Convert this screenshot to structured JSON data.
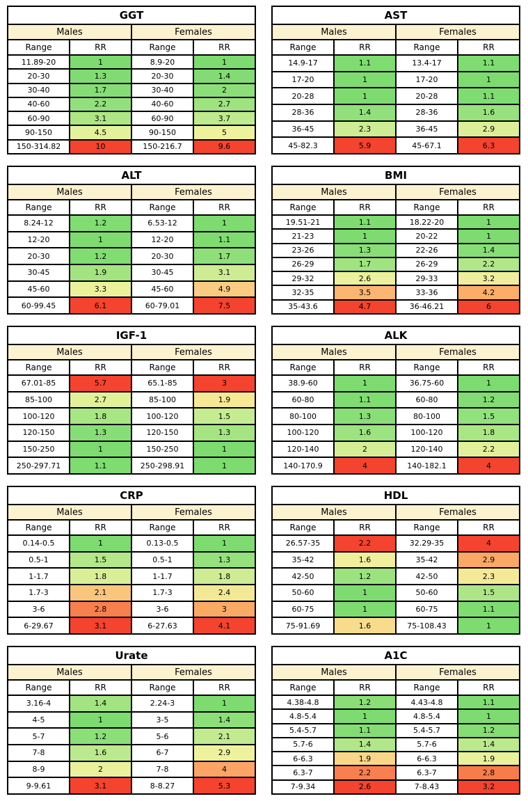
{
  "colors": {
    "background": "#ffffff",
    "border": "#000000",
    "text": "#000000",
    "gender_header_fill": "#fdf2d0",
    "scale_green_low": "#7ddb70",
    "scale_yellow_mid": "#f1ee9e",
    "scale_red_high": "#f4432e"
  },
  "labels": {
    "males": "Males",
    "females": "Females",
    "range": "Range",
    "rr": "RR"
  },
  "chart_data": {
    "type": "table",
    "layout": "2 columns x 5 rows of biomarker relative-risk tables, RR cells colored green(low) to red(high) per column",
    "tables": [
      {
        "title": "GGT",
        "males": [
          {
            "range": "11.89-20",
            "rr": "1",
            "color": "#7ddb70"
          },
          {
            "range": "20-30",
            "rr": "1.3",
            "color": "#80dc72"
          },
          {
            "range": "30-40",
            "rr": "1.7",
            "color": "#86dd75"
          },
          {
            "range": "40-60",
            "rr": "2.2",
            "color": "#92e07c"
          },
          {
            "range": "60-90",
            "rr": "3.1",
            "color": "#aee686"
          },
          {
            "range": "90-150",
            "rr": "4.5",
            "color": "#e4f19b"
          },
          {
            "range": "150-314.82",
            "rr": "10",
            "color": "#f4432e"
          }
        ],
        "females": [
          {
            "range": "8.9-20",
            "rr": "1",
            "color": "#7ddb70"
          },
          {
            "range": "20-30",
            "rr": "1.4",
            "color": "#82dc73"
          },
          {
            "range": "30-40",
            "rr": "2",
            "color": "#8cdf78"
          },
          {
            "range": "40-60",
            "rr": "2.7",
            "color": "#9ee37f"
          },
          {
            "range": "60-90",
            "rr": "3.7",
            "color": "#c0ea8e"
          },
          {
            "range": "90-150",
            "rr": "5",
            "color": "#eef29d"
          },
          {
            "range": "150-216.7",
            "rr": "9.6",
            "color": "#f4432e"
          }
        ]
      },
      {
        "title": "AST",
        "males": [
          {
            "range": "14.9-17",
            "rr": "1.1",
            "color": "#7fdc71"
          },
          {
            "range": "17-20",
            "rr": "1",
            "color": "#7ddb70"
          },
          {
            "range": "20-28",
            "rr": "1",
            "color": "#7ddb70"
          },
          {
            "range": "28-36",
            "rr": "1.4",
            "color": "#91e07b"
          },
          {
            "range": "36-45",
            "rr": "2.3",
            "color": "#cdec93"
          },
          {
            "range": "45-82.3",
            "rr": "5.9",
            "color": "#f4432e"
          }
        ],
        "females": [
          {
            "range": "13.4-17",
            "rr": "1.1",
            "color": "#7edc71"
          },
          {
            "range": "17-20",
            "rr": "1",
            "color": "#7ddb70"
          },
          {
            "range": "20-28",
            "rr": "1.1",
            "color": "#7edc71"
          },
          {
            "range": "28-36",
            "rr": "1.6",
            "color": "#97e27d"
          },
          {
            "range": "36-45",
            "rr": "2.9",
            "color": "#ddf098"
          },
          {
            "range": "45-67.1",
            "rr": "6.3",
            "color": "#f4432e"
          }
        ]
      },
      {
        "title": "ALT",
        "males": [
          {
            "range": "8.24-12",
            "rr": "1.2",
            "color": "#81dc72"
          },
          {
            "range": "12-20",
            "rr": "1",
            "color": "#7ddb70"
          },
          {
            "range": "20-30",
            "rr": "1.2",
            "color": "#81dc72"
          },
          {
            "range": "30-45",
            "rr": "1.9",
            "color": "#a3e481"
          },
          {
            "range": "45-60",
            "rr": "3.3",
            "color": "#ecf29c"
          },
          {
            "range": "60-99.45",
            "rr": "6.1",
            "color": "#f4432e"
          }
        ],
        "females": [
          {
            "range": "6.53-12",
            "rr": "1",
            "color": "#7ddb70"
          },
          {
            "range": "12-20",
            "rr": "1.1",
            "color": "#7fdc71"
          },
          {
            "range": "20-30",
            "rr": "1.7",
            "color": "#8ede79"
          },
          {
            "range": "30-45",
            "rr": "3.1",
            "color": "#cdec93"
          },
          {
            "range": "45-60",
            "rr": "4.9",
            "color": "#f9cc82"
          },
          {
            "range": "60-79.01",
            "rr": "7.5",
            "color": "#f4432e"
          }
        ]
      },
      {
        "title": "BMI",
        "males": [
          {
            "range": "19.51-21",
            "rr": "1.1",
            "color": "#7fdc71"
          },
          {
            "range": "21-23",
            "rr": "1",
            "color": "#7ddb70"
          },
          {
            "range": "23-26",
            "rr": "1.3",
            "color": "#89de77"
          },
          {
            "range": "26-29",
            "rr": "1.7",
            "color": "#a0e380"
          },
          {
            "range": "29-32",
            "rr": "2.6",
            "color": "#ebf19c"
          },
          {
            "range": "32-35",
            "rr": "3.5",
            "color": "#fbb671"
          },
          {
            "range": "35-43.6",
            "rr": "4.7",
            "color": "#f4432e"
          }
        ],
        "females": [
          {
            "range": "18.22-20",
            "rr": "1",
            "color": "#7ddb70"
          },
          {
            "range": "20-22",
            "rr": "1",
            "color": "#7ddb70"
          },
          {
            "range": "22-26",
            "rr": "1.4",
            "color": "#87de76"
          },
          {
            "range": "26-29",
            "rr": "2.2",
            "color": "#b2e789"
          },
          {
            "range": "29-33",
            "rr": "3.2",
            "color": "#f0ee9e"
          },
          {
            "range": "33-36",
            "rr": "4.2",
            "color": "#fbae68"
          },
          {
            "range": "36-46.21",
            "rr": "6",
            "color": "#f4432e"
          }
        ]
      },
      {
        "title": "IGF-1",
        "males": [
          {
            "range": "67.01-85",
            "rr": "5.7",
            "color": "#f4432e"
          },
          {
            "range": "85-100",
            "rr": "2.7",
            "color": "#e2f09a"
          },
          {
            "range": "100-120",
            "rr": "1.8",
            "color": "#a8e583"
          },
          {
            "range": "120-150",
            "rr": "1.3",
            "color": "#87de76"
          },
          {
            "range": "150-250",
            "rr": "1",
            "color": "#7ddb70"
          },
          {
            "range": "250-297.71",
            "rr": "1.1",
            "color": "#7edc71"
          }
        ],
        "females": [
          {
            "range": "65.1-85",
            "rr": "3",
            "color": "#f4432e"
          },
          {
            "range": "85-100",
            "rr": "1.9",
            "color": "#f6e894"
          },
          {
            "range": "100-120",
            "rr": "1.5",
            "color": "#c6eb91"
          },
          {
            "range": "120-150",
            "rr": "1.3",
            "color": "#a6e482"
          },
          {
            "range": "150-250",
            "rr": "1",
            "color": "#7ddb70"
          },
          {
            "range": "250-298.91",
            "rr": "1",
            "color": "#7ddb70"
          }
        ]
      },
      {
        "title": "ALK",
        "males": [
          {
            "range": "38.9-60",
            "rr": "1",
            "color": "#7ddb70"
          },
          {
            "range": "60-80",
            "rr": "1.1",
            "color": "#7fdc71"
          },
          {
            "range": "80-100",
            "rr": "1.3",
            "color": "#8ade77"
          },
          {
            "range": "100-120",
            "rr": "1.6",
            "color": "#9de37f"
          },
          {
            "range": "120-140",
            "rr": "2",
            "color": "#d5ee96"
          },
          {
            "range": "140-170.9",
            "rr": "4",
            "color": "#f4432e"
          }
        ],
        "females": [
          {
            "range": "36.75-60",
            "rr": "1",
            "color": "#7ddb70"
          },
          {
            "range": "60-80",
            "rr": "1.2",
            "color": "#82dc73"
          },
          {
            "range": "80-100",
            "rr": "1.5",
            "color": "#93e17c"
          },
          {
            "range": "100-120",
            "rr": "1.8",
            "color": "#abe685"
          },
          {
            "range": "120-140",
            "rr": "2.2",
            "color": "#e3f09a"
          },
          {
            "range": "140-182.1",
            "rr": "4",
            "color": "#f4432e"
          }
        ]
      },
      {
        "title": "CRP",
        "males": [
          {
            "range": "0.14-0.5",
            "rr": "1",
            "color": "#7ddb70"
          },
          {
            "range": "0.5-1",
            "rr": "1.5",
            "color": "#b3e789"
          },
          {
            "range": "1-1.7",
            "rr": "1.8",
            "color": "#d9ef97"
          },
          {
            "range": "1.7-3",
            "rr": "2.1",
            "color": "#fac57c"
          },
          {
            "range": "3-6",
            "rr": "2.8",
            "color": "#f87f4e"
          },
          {
            "range": "6-29.67",
            "rr": "3.1",
            "color": "#f4432e"
          }
        ],
        "females": [
          {
            "range": "0.13-0.5",
            "rr": "1",
            "color": "#7ddb70"
          },
          {
            "range": "0.5-1",
            "rr": "1.3",
            "color": "#95e17d"
          },
          {
            "range": "1-1.7",
            "rr": "1.8",
            "color": "#cdec93"
          },
          {
            "range": "1.7-3",
            "rr": "2.4",
            "color": "#f3e995"
          },
          {
            "range": "3-6",
            "rr": "3",
            "color": "#fbaa66"
          },
          {
            "range": "6-27.63",
            "rr": "4.1",
            "color": "#f4432e"
          }
        ]
      },
      {
        "title": "HDL",
        "males": [
          {
            "range": "26.57-35",
            "rr": "2.2",
            "color": "#f4432e"
          },
          {
            "range": "35-42",
            "rr": "1.6",
            "color": "#f1ee9e"
          },
          {
            "range": "42-50",
            "rr": "1.2",
            "color": "#9ce37f"
          },
          {
            "range": "50-60",
            "rr": "1",
            "color": "#7ddb70"
          },
          {
            "range": "60-75",
            "rr": "1",
            "color": "#7ddb70"
          },
          {
            "range": "75-91.69",
            "rr": "1.6",
            "color": "#f8dc8d"
          }
        ],
        "females": [
          {
            "range": "32.29-35",
            "rr": "4",
            "color": "#f4432e"
          },
          {
            "range": "35-42",
            "rr": "2.9",
            "color": "#fba765"
          },
          {
            "range": "42-50",
            "rr": "2.3",
            "color": "#f4e996"
          },
          {
            "range": "50-60",
            "rr": "1.5",
            "color": "#aee687"
          },
          {
            "range": "60-75",
            "rr": "1.1",
            "color": "#7fdc71"
          },
          {
            "range": "75-108.43",
            "rr": "1",
            "color": "#7ddb70"
          }
        ]
      },
      {
        "title": "Urate",
        "males": [
          {
            "range": "3.16-4",
            "rr": "1.4",
            "color": "#a2e481"
          },
          {
            "range": "4-5",
            "rr": "1",
            "color": "#7ddb70"
          },
          {
            "range": "5-7",
            "rr": "1.2",
            "color": "#8bdf77"
          },
          {
            "range": "7-8",
            "rr": "1.6",
            "color": "#bce98d"
          },
          {
            "range": "8-9",
            "rr": "2",
            "color": "#eaf19c"
          },
          {
            "range": "9-9.61",
            "rr": "3.1",
            "color": "#f4432e"
          }
        ],
        "females": [
          {
            "range": "2.24-3",
            "rr": "1",
            "color": "#7ddb70"
          },
          {
            "range": "3-5",
            "rr": "1.4",
            "color": "#8ddf79"
          },
          {
            "range": "5-6",
            "rr": "2.1",
            "color": "#c2ea8f"
          },
          {
            "range": "6-7",
            "rr": "2.9",
            "color": "#eef29d"
          },
          {
            "range": "7-8",
            "rr": "4",
            "color": "#fba466"
          },
          {
            "range": "8-8.27",
            "rr": "5.3",
            "color": "#f4432e"
          }
        ]
      },
      {
        "title": "A1C",
        "males": [
          {
            "range": "4.38-4.8",
            "rr": "1.2",
            "color": "#8ade76"
          },
          {
            "range": "4.8-5.4",
            "rr": "1",
            "color": "#7ddb70"
          },
          {
            "range": "5.4-5.7",
            "rr": "1.1",
            "color": "#83dd74"
          },
          {
            "range": "5.7-6",
            "rr": "1.4",
            "color": "#b1e788"
          },
          {
            "range": "6-6.3",
            "rr": "1.9",
            "color": "#f9d688"
          },
          {
            "range": "6.3-7",
            "rr": "2.2",
            "color": "#f97f51"
          },
          {
            "range": "7-9.34",
            "rr": "2.6",
            "color": "#f4432e"
          }
        ],
        "females": [
          {
            "range": "4.43-4.8",
            "rr": "1.1",
            "color": "#7fdc71"
          },
          {
            "range": "4.8-5.4",
            "rr": "1",
            "color": "#7ddb70"
          },
          {
            "range": "5.4-5.7",
            "rr": "1.2",
            "color": "#85dd74"
          },
          {
            "range": "5.7-6",
            "rr": "1.4",
            "color": "#bbe98c"
          },
          {
            "range": "6-6.3",
            "rr": "1.9",
            "color": "#e9f19b"
          },
          {
            "range": "6.3-7",
            "rr": "2.8",
            "color": "#f87c4a"
          },
          {
            "range": "7-8.43",
            "rr": "3.2",
            "color": "#f4432e"
          }
        ]
      }
    ]
  }
}
